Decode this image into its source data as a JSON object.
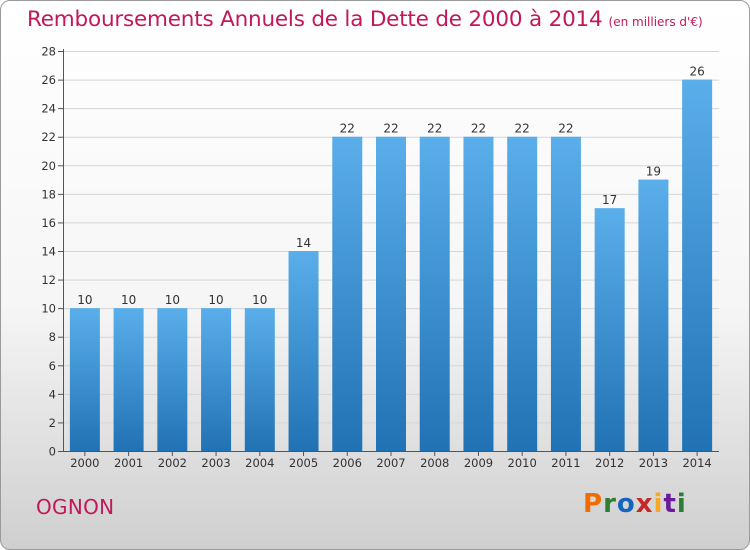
{
  "title": {
    "main": "Remboursements Annuels de la Dette de 2000 à 2014",
    "subtitle": "(en milliers d'€)"
  },
  "commune": "OGNON",
  "brand": {
    "letters": [
      "P",
      "r",
      "o",
      "x",
      "i",
      "t",
      "i"
    ]
  },
  "colors": {
    "title": "#c2185b",
    "bar_top": "#5aaeea",
    "bar_bottom": "#2172b4",
    "grid": "#d6d6d6"
  },
  "chart_data": {
    "type": "bar",
    "title": "Remboursements Annuels de la Dette de 2000 à 2014",
    "subtitle": "(en milliers d'€)",
    "xlabel": "",
    "ylabel": "",
    "categories": [
      "2000",
      "2001",
      "2002",
      "2003",
      "2004",
      "2005",
      "2006",
      "2007",
      "2008",
      "2009",
      "2010",
      "2011",
      "2012",
      "2013",
      "2014"
    ],
    "values": [
      10,
      10,
      10,
      10,
      10,
      14,
      22,
      22,
      22,
      22,
      22,
      22,
      17,
      19,
      26
    ],
    "ylim": [
      0,
      28
    ],
    "yticks": [
      0,
      2,
      4,
      6,
      8,
      10,
      12,
      14,
      16,
      18,
      20,
      22,
      24,
      26,
      28
    ],
    "grid": true,
    "legend": "none"
  }
}
